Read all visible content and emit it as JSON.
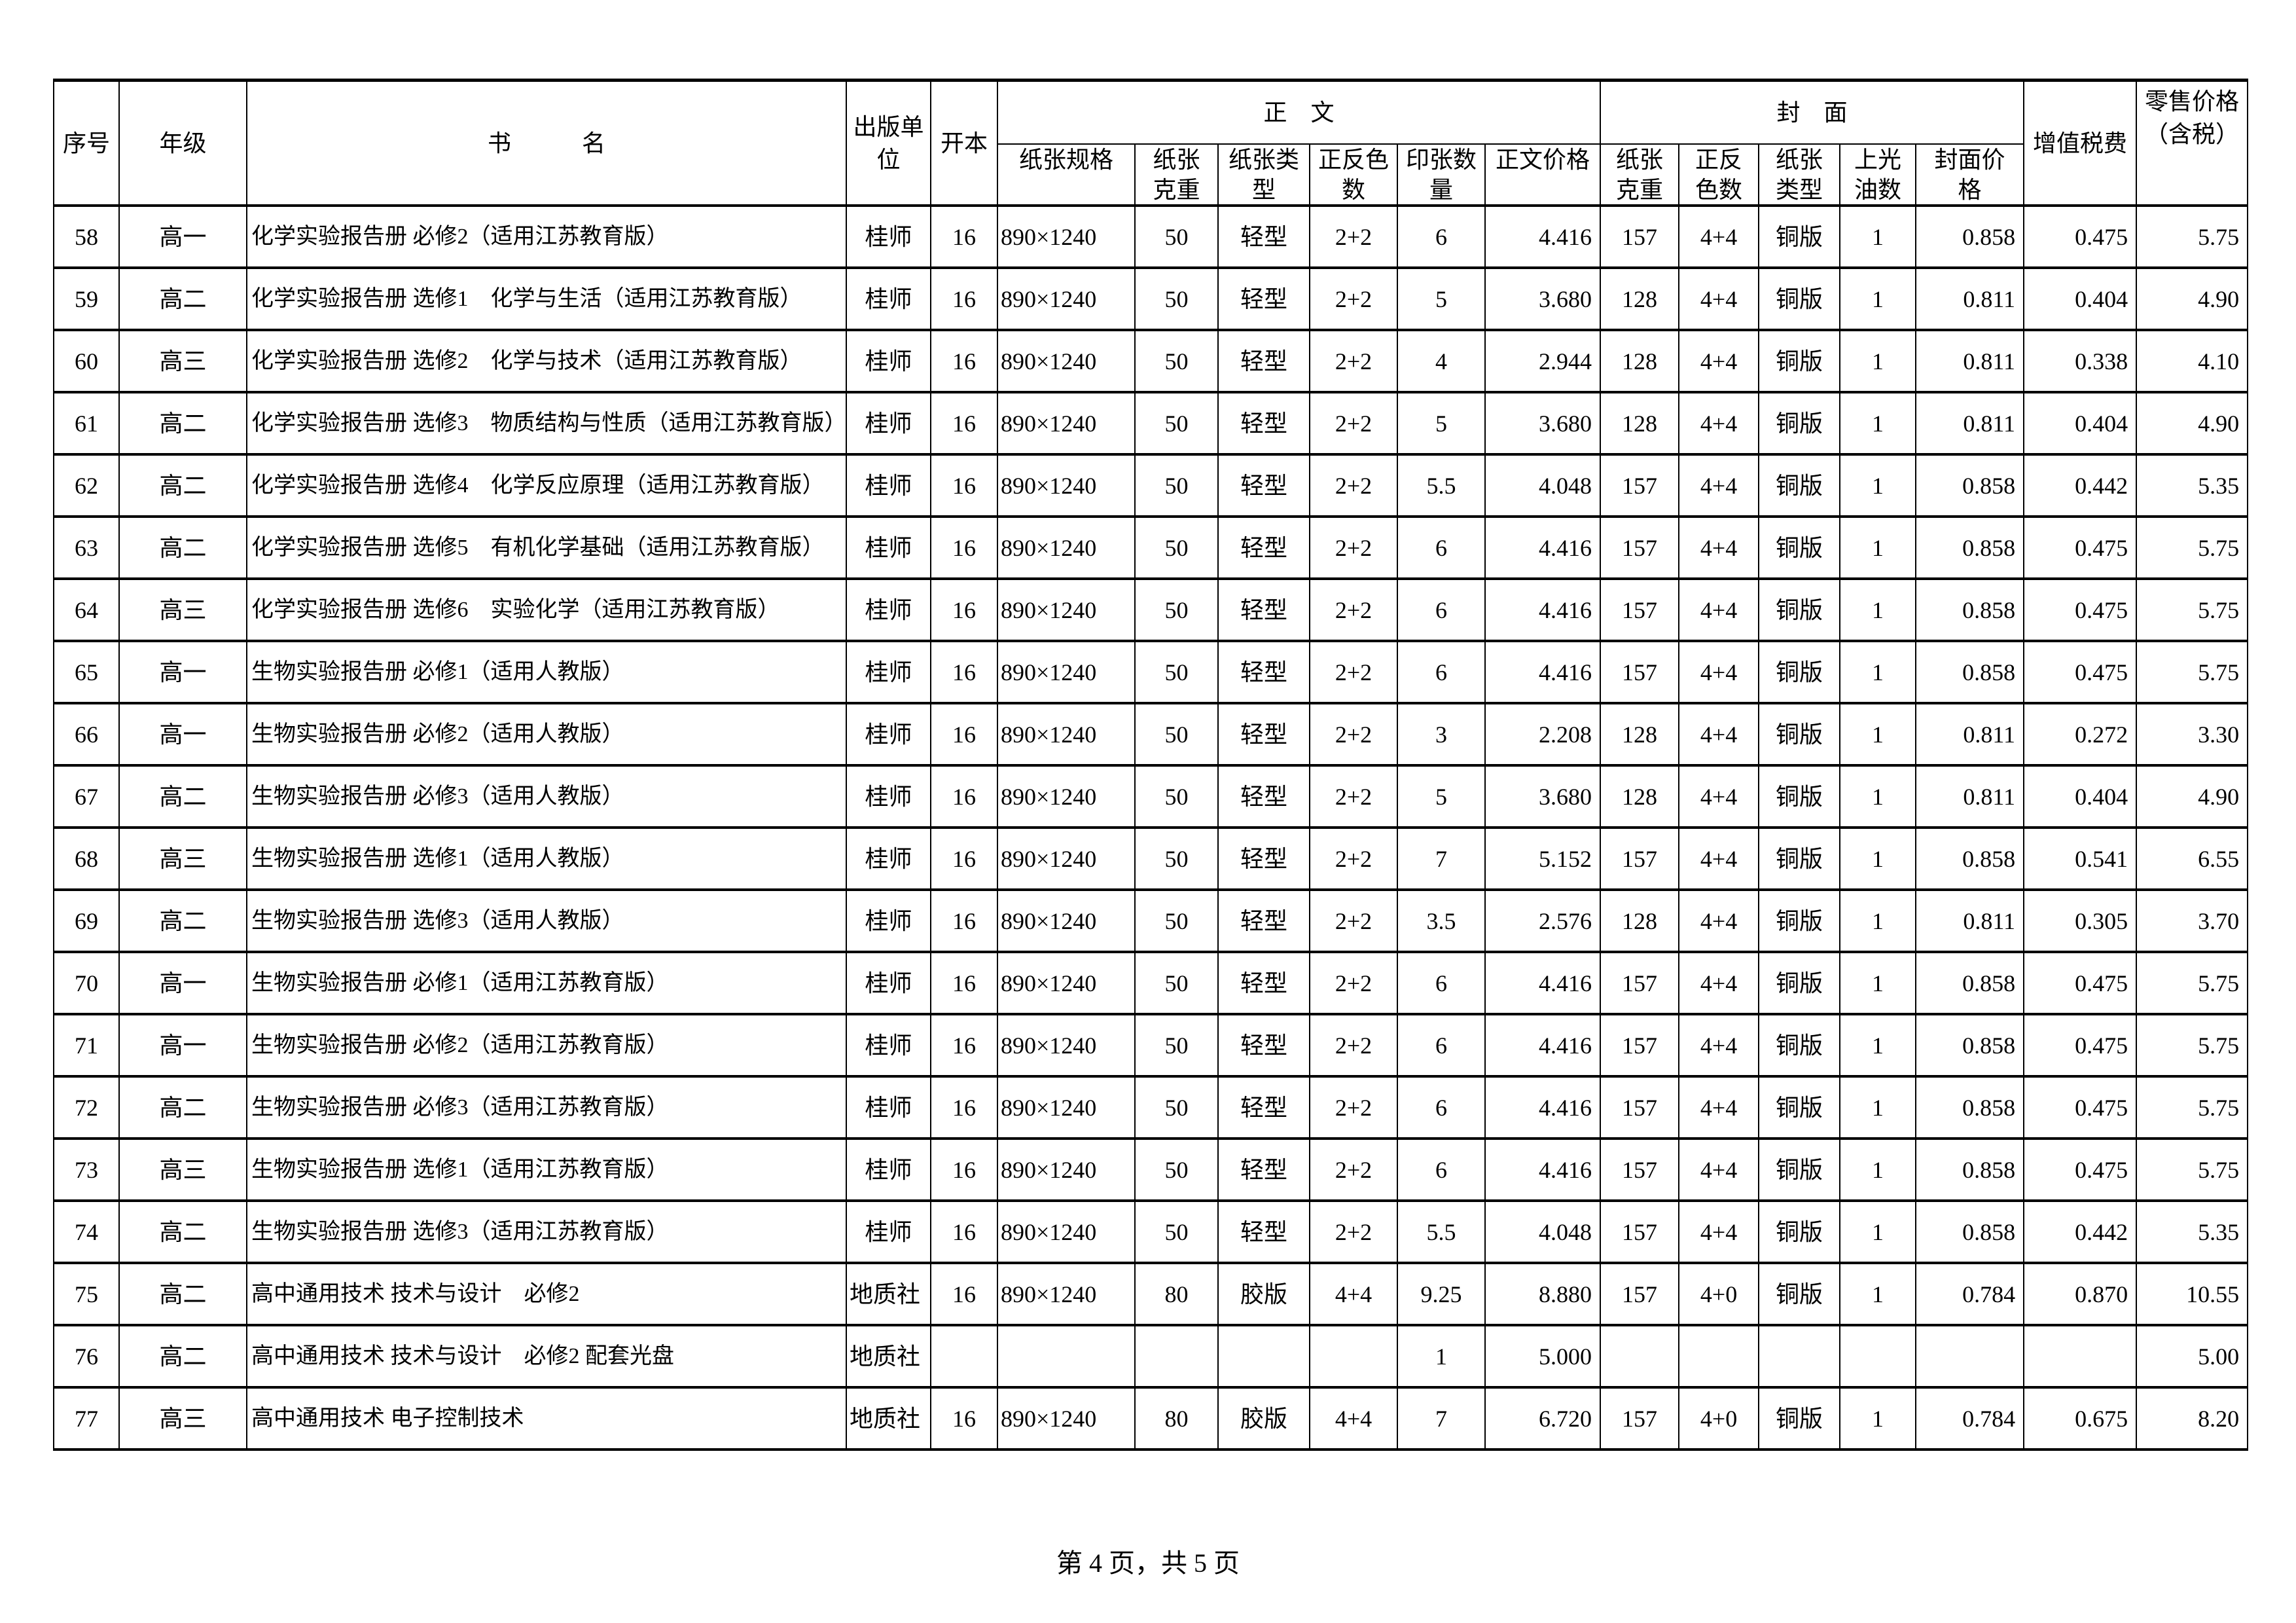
{
  "header": {
    "seq": "序号",
    "grade": "年级",
    "title": "书　　　名",
    "publisher": "出版单位",
    "format": "开本",
    "body_group": "正　文",
    "cover_group": "封　面",
    "body_cols": [
      "纸张规格",
      "纸张克重",
      "纸张类型",
      "正反色数",
      "印张数量",
      "正文价格"
    ],
    "cover_cols": [
      "纸张克重",
      "正反色数",
      "纸张类型",
      "上光油数",
      "封面价格"
    ],
    "vat": "增值税费",
    "retail": "零售价格（含税）"
  },
  "rows": [
    [
      "58",
      "高一",
      "化学实验报告册 必修2（适用江苏教育版）",
      "桂师",
      "16",
      "890×1240",
      "50",
      "轻型",
      "2+2",
      "6",
      "4.416",
      "157",
      "4+4",
      "铜版",
      "1",
      "0.858",
      "0.475",
      "5.75"
    ],
    [
      "59",
      "高二",
      "化学实验报告册 选修1　化学与生活（适用江苏教育版）",
      "桂师",
      "16",
      "890×1240",
      "50",
      "轻型",
      "2+2",
      "5",
      "3.680",
      "128",
      "4+4",
      "铜版",
      "1",
      "0.811",
      "0.404",
      "4.90"
    ],
    [
      "60",
      "高三",
      "化学实验报告册 选修2　化学与技术（适用江苏教育版）",
      "桂师",
      "16",
      "890×1240",
      "50",
      "轻型",
      "2+2",
      "4",
      "2.944",
      "128",
      "4+4",
      "铜版",
      "1",
      "0.811",
      "0.338",
      "4.10"
    ],
    [
      "61",
      "高二",
      "化学实验报告册 选修3　物质结构与性质（适用江苏教育版）",
      "桂师",
      "16",
      "890×1240",
      "50",
      "轻型",
      "2+2",
      "5",
      "3.680",
      "128",
      "4+4",
      "铜版",
      "1",
      "0.811",
      "0.404",
      "4.90"
    ],
    [
      "62",
      "高二",
      "化学实验报告册 选修4　化学反应原理（适用江苏教育版）",
      "桂师",
      "16",
      "890×1240",
      "50",
      "轻型",
      "2+2",
      "5.5",
      "4.048",
      "157",
      "4+4",
      "铜版",
      "1",
      "0.858",
      "0.442",
      "5.35"
    ],
    [
      "63",
      "高二",
      "化学实验报告册 选修5　有机化学基础（适用江苏教育版）",
      "桂师",
      "16",
      "890×1240",
      "50",
      "轻型",
      "2+2",
      "6",
      "4.416",
      "157",
      "4+4",
      "铜版",
      "1",
      "0.858",
      "0.475",
      "5.75"
    ],
    [
      "64",
      "高三",
      "化学实验报告册 选修6　实验化学（适用江苏教育版）",
      "桂师",
      "16",
      "890×1240",
      "50",
      "轻型",
      "2+2",
      "6",
      "4.416",
      "157",
      "4+4",
      "铜版",
      "1",
      "0.858",
      "0.475",
      "5.75"
    ],
    [
      "65",
      "高一",
      "生物实验报告册 必修1（适用人教版）",
      "桂师",
      "16",
      "890×1240",
      "50",
      "轻型",
      "2+2",
      "6",
      "4.416",
      "157",
      "4+4",
      "铜版",
      "1",
      "0.858",
      "0.475",
      "5.75"
    ],
    [
      "66",
      "高一",
      "生物实验报告册 必修2（适用人教版）",
      "桂师",
      "16",
      "890×1240",
      "50",
      "轻型",
      "2+2",
      "3",
      "2.208",
      "128",
      "4+4",
      "铜版",
      "1",
      "0.811",
      "0.272",
      "3.30"
    ],
    [
      "67",
      "高二",
      "生物实验报告册 必修3（适用人教版）",
      "桂师",
      "16",
      "890×1240",
      "50",
      "轻型",
      "2+2",
      "5",
      "3.680",
      "128",
      "4+4",
      "铜版",
      "1",
      "0.811",
      "0.404",
      "4.90"
    ],
    [
      "68",
      "高三",
      "生物实验报告册 选修1（适用人教版）",
      "桂师",
      "16",
      "890×1240",
      "50",
      "轻型",
      "2+2",
      "7",
      "5.152",
      "157",
      "4+4",
      "铜版",
      "1",
      "0.858",
      "0.541",
      "6.55"
    ],
    [
      "69",
      "高二",
      "生物实验报告册 选修3（适用人教版）",
      "桂师",
      "16",
      "890×1240",
      "50",
      "轻型",
      "2+2",
      "3.5",
      "2.576",
      "128",
      "4+4",
      "铜版",
      "1",
      "0.811",
      "0.305",
      "3.70"
    ],
    [
      "70",
      "高一",
      "生物实验报告册 必修1（适用江苏教育版）",
      "桂师",
      "16",
      "890×1240",
      "50",
      "轻型",
      "2+2",
      "6",
      "4.416",
      "157",
      "4+4",
      "铜版",
      "1",
      "0.858",
      "0.475",
      "5.75"
    ],
    [
      "71",
      "高一",
      "生物实验报告册 必修2（适用江苏教育版）",
      "桂师",
      "16",
      "890×1240",
      "50",
      "轻型",
      "2+2",
      "6",
      "4.416",
      "157",
      "4+4",
      "铜版",
      "1",
      "0.858",
      "0.475",
      "5.75"
    ],
    [
      "72",
      "高二",
      "生物实验报告册 必修3（适用江苏教育版）",
      "桂师",
      "16",
      "890×1240",
      "50",
      "轻型",
      "2+2",
      "6",
      "4.416",
      "157",
      "4+4",
      "铜版",
      "1",
      "0.858",
      "0.475",
      "5.75"
    ],
    [
      "73",
      "高三",
      "生物实验报告册 选修1（适用江苏教育版）",
      "桂师",
      "16",
      "890×1240",
      "50",
      "轻型",
      "2+2",
      "6",
      "4.416",
      "157",
      "4+4",
      "铜版",
      "1",
      "0.858",
      "0.475",
      "5.75"
    ],
    [
      "74",
      "高二",
      "生物实验报告册 选修3（适用江苏教育版）",
      "桂师",
      "16",
      "890×1240",
      "50",
      "轻型",
      "2+2",
      "5.5",
      "4.048",
      "157",
      "4+4",
      "铜版",
      "1",
      "0.858",
      "0.442",
      "5.35"
    ],
    [
      "75",
      "高二",
      "高中通用技术 技术与设计　必修2",
      "地质社",
      "16",
      "890×1240",
      "80",
      "胶版",
      "4+4",
      "9.25",
      "8.880",
      "157",
      "4+0",
      "铜版",
      "1",
      "0.784",
      "0.870",
      "10.55"
    ],
    [
      "76",
      "高二",
      "高中通用技术 技术与设计　必修2 配套光盘",
      "地质社",
      "",
      "",
      "",
      "",
      "",
      "1",
      "5.000",
      "",
      "",
      "",
      "",
      "",
      "",
      "5.00"
    ],
    [
      "77",
      "高三",
      "高中通用技术 电子控制技术",
      "地质社",
      "16",
      "890×1240",
      "80",
      "胶版",
      "4+4",
      "7",
      "6.720",
      "157",
      "4+0",
      "铜版",
      "1",
      "0.784",
      "0.675",
      "8.20"
    ]
  ],
  "footer": "第 4 页，共 5 页"
}
